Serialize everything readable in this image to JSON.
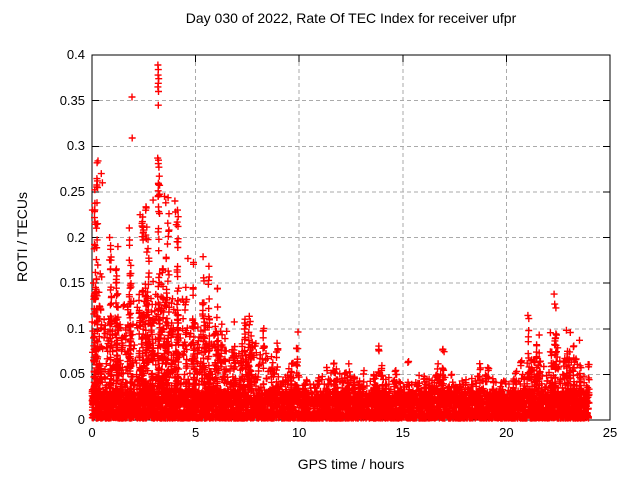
{
  "page": {
    "background": "#ffffff"
  },
  "chart": {
    "title": "Day 030 of 2022, Rate Of TEC Index for receiver ufpr",
    "xlabel": "GPS time / hours",
    "ylabel": "ROTI / TECUs"
  },
  "chart_data": {
    "type": "scatter",
    "title": "Day 030 of 2022, Rate Of TEC Index for receiver ufpr",
    "xlabel": "GPS time / hours",
    "ylabel": "ROTI / TECUs",
    "marker": "plus",
    "marker_color": "#ff0000",
    "axis_color": "#000000",
    "grid_color": "#aaaaaa",
    "grid": true,
    "legend": false,
    "xlim": [
      0,
      25
    ],
    "ylim": [
      0,
      0.4
    ],
    "data_hour_range": [
      0,
      24
    ],
    "xticks": [
      {
        "value": 0,
        "label": "0"
      },
      {
        "value": 5,
        "label": "5"
      },
      {
        "value": 10,
        "label": "10"
      },
      {
        "value": 15,
        "label": "15"
      },
      {
        "value": 20,
        "label": "20"
      },
      {
        "value": 25,
        "label": "25"
      }
    ],
    "yticks": [
      {
        "value": 0,
        "label": "0"
      },
      {
        "value": 0.05,
        "label": "0.05"
      },
      {
        "value": 0.1,
        "label": "0.1"
      },
      {
        "value": 0.15,
        "label": "0.15"
      },
      {
        "value": 0.2,
        "label": "0.2"
      },
      {
        "value": 0.25,
        "label": "0.25"
      },
      {
        "value": 0.3,
        "label": "0.3"
      },
      {
        "value": 0.35,
        "label": "0.35"
      },
      {
        "value": 0.4,
        "label": "0.4"
      }
    ],
    "envelope": {
      "bin_hours": 0.5,
      "max_roti": [
        0.29,
        0.2,
        0.19,
        0.22,
        0.225,
        0.24,
        0.29,
        0.245,
        0.235,
        0.18,
        0.165,
        0.17,
        0.16,
        0.12,
        0.115,
        0.14,
        0.11,
        0.09,
        0.06,
        0.1,
        0.05,
        0.055,
        0.06,
        0.075,
        0.07,
        0.06,
        0.055,
        0.085,
        0.06,
        0.055,
        0.065,
        0.05,
        0.06,
        0.08,
        0.065,
        0.05,
        0.055,
        0.065,
        0.06,
        0.05,
        0.055,
        0.065,
        0.115,
        0.095,
        0.125,
        0.1,
        0.105,
        0.09
      ]
    },
    "baseline_band_roti": [
      0,
      0.03
    ],
    "outliers": [
      [
        0.02,
        0.23
      ],
      [
        0.24,
        0.238
      ],
      [
        0.29,
        0.284
      ],
      [
        0.45,
        0.27
      ],
      [
        0.5,
        0.26
      ],
      [
        0.85,
        0.2
      ],
      [
        1.25,
        0.19
      ],
      [
        1.93,
        0.354
      ],
      [
        1.94,
        0.309
      ],
      [
        2.32,
        0.225
      ],
      [
        2.95,
        0.241
      ],
      [
        3.18,
        0.389
      ],
      [
        3.2,
        0.384
      ],
      [
        3.19,
        0.378
      ],
      [
        3.22,
        0.374
      ],
      [
        3.2,
        0.369
      ],
      [
        3.18,
        0.365
      ],
      [
        3.21,
        0.36
      ],
      [
        3.2,
        0.345
      ],
      [
        3.17,
        0.287
      ],
      [
        3.2,
        0.281
      ],
      [
        3.23,
        0.277
      ],
      [
        3.21,
        0.258
      ],
      [
        3.5,
        0.245
      ],
      [
        3.56,
        0.238
      ],
      [
        4.0,
        0.24
      ],
      [
        4.03,
        0.228
      ],
      [
        4.07,
        0.214
      ],
      [
        4.63,
        0.177
      ],
      [
        5.36,
        0.179
      ],
      [
        22.3,
        0.138
      ],
      [
        22.33,
        0.127
      ]
    ],
    "gen": {
      "seed": 20220130,
      "base_n": 80,
      "base_max": 0.03,
      "mid_base_n": 18,
      "mid_scale_n": 220,
      "mid_height_frac": 0.5,
      "col_min": 2,
      "col_rand": 3,
      "col_step": 0.0075,
      "col_jitter": 0.04
    }
  }
}
